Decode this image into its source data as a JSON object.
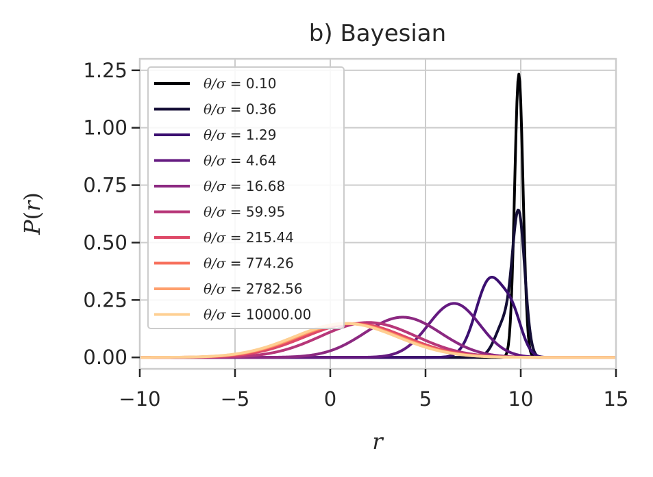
{
  "chart_data": {
    "type": "line",
    "title": "b) Bayesian",
    "xlabel": "r",
    "ylabel_parts": {
      "func": "P",
      "open": "(",
      "var": "r",
      "close": ")"
    },
    "xlim": [
      -10,
      15
    ],
    "ylim": [
      -0.05,
      1.3
    ],
    "xticks": [
      -10,
      -5,
      0,
      5,
      10,
      15
    ],
    "xtick_labels": [
      "−10",
      "−5",
      "0",
      "5",
      "10",
      "15"
    ],
    "yticks": [
      0,
      0.25,
      0.5,
      0.75,
      1.0,
      1.25
    ],
    "ytick_labels": [
      "0.00",
      "0.25",
      "0.50",
      "0.75",
      "1.00",
      "1.25"
    ],
    "grid": true,
    "legend_position": "upper-left",
    "legend_symbol": "θ/σ",
    "legend_eq": " = ",
    "series": [
      {
        "name": "0.10",
        "color": "#000004",
        "peaks": [
          [
            9.9,
            0.22,
            1.233
          ]
        ]
      },
      {
        "name": "0.36",
        "color": "#140e36",
        "peaks": [
          [
            9.9,
            0.32,
            0.58
          ],
          [
            9.2,
            0.5,
            0.16
          ]
        ]
      },
      {
        "name": "1.29",
        "color": "#3b0f70",
        "peaks": [
          [
            8.4,
            0.75,
            0.34
          ],
          [
            9.6,
            0.5,
            0.14
          ]
        ]
      },
      {
        "name": "4.64",
        "color": "#641a80",
        "peaks": [
          [
            6.5,
            1.35,
            0.235
          ]
        ]
      },
      {
        "name": "16.68",
        "color": "#8c2981",
        "peaks": [
          [
            3.8,
            2.0,
            0.175
          ]
        ]
      },
      {
        "name": "59.95",
        "color": "#b73779",
        "peaks": [
          [
            2.0,
            2.5,
            0.152
          ]
        ]
      },
      {
        "name": "215.44",
        "color": "#de4968",
        "peaks": [
          [
            1.3,
            2.65,
            0.147
          ]
        ]
      },
      {
        "name": "774.26",
        "color": "#f7705c",
        "peaks": [
          [
            1.0,
            2.7,
            0.147
          ]
        ]
      },
      {
        "name": "2782.56",
        "color": "#fe9f6d",
        "peaks": [
          [
            0.9,
            2.7,
            0.147
          ]
        ]
      },
      {
        "name": "10000.00",
        "color": "#fecf92",
        "peaks": [
          [
            0.8,
            2.7,
            0.148
          ]
        ]
      }
    ]
  }
}
